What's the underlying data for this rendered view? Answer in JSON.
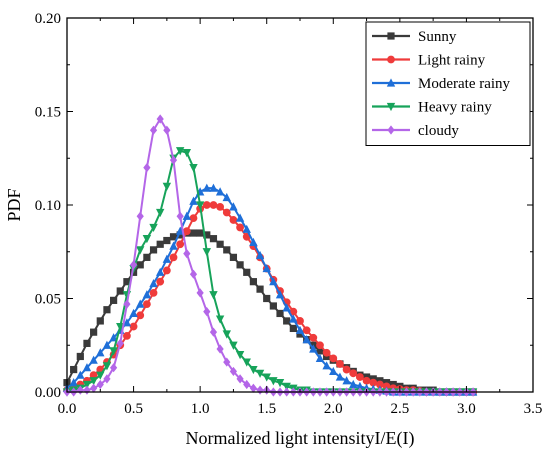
{
  "chart_data": {
    "type": "line",
    "xlabel": "Normalized light intensityI/E(I)",
    "ylabel": "PDF",
    "xlim": [
      0,
      3.5
    ],
    "ylim": [
      0,
      0.2
    ],
    "xticks": [
      "0.0",
      "0.5",
      "1.0",
      "1.5",
      "2.0",
      "2.5",
      "3.0",
      "3.5"
    ],
    "yticks": [
      "0.00",
      "0.05",
      "0.10",
      "0.15",
      "0.20"
    ],
    "grid": false,
    "legend_position": "top-right",
    "series": [
      {
        "name": "Sunny",
        "color": "#3a3a3a",
        "marker": "square",
        "x": [
          0.0,
          0.05,
          0.1,
          0.15,
          0.2,
          0.25,
          0.3,
          0.35,
          0.4,
          0.45,
          0.5,
          0.55,
          0.6,
          0.65,
          0.7,
          0.75,
          0.8,
          0.85,
          0.9,
          0.95,
          1.0,
          1.05,
          1.1,
          1.15,
          1.2,
          1.25,
          1.3,
          1.35,
          1.4,
          1.45,
          1.5,
          1.55,
          1.6,
          1.65,
          1.7,
          1.75,
          1.8,
          1.85,
          1.9,
          1.95,
          2.0,
          2.05,
          2.1,
          2.15,
          2.2,
          2.25,
          2.3,
          2.35,
          2.4,
          2.45,
          2.5,
          2.55,
          2.6,
          2.65,
          2.7,
          2.75,
          2.8,
          2.85,
          2.9,
          2.95,
          3.0,
          3.05
        ],
        "y": [
          0.005,
          0.012,
          0.019,
          0.026,
          0.032,
          0.038,
          0.044,
          0.049,
          0.054,
          0.059,
          0.064,
          0.068,
          0.072,
          0.076,
          0.079,
          0.081,
          0.083,
          0.084,
          0.085,
          0.085,
          0.085,
          0.084,
          0.082,
          0.079,
          0.076,
          0.072,
          0.068,
          0.064,
          0.059,
          0.055,
          0.05,
          0.046,
          0.042,
          0.038,
          0.034,
          0.031,
          0.028,
          0.025,
          0.022,
          0.019,
          0.017,
          0.015,
          0.013,
          0.011,
          0.009,
          0.008,
          0.007,
          0.006,
          0.005,
          0.004,
          0.003,
          0.002,
          0.002,
          0.001,
          0.001,
          0.001,
          0.0,
          0.0,
          0.0,
          0.0,
          0.0,
          0.0
        ]
      },
      {
        "name": "Light rainy",
        "color": "#ef3b3b",
        "marker": "circle",
        "x": [
          0.0,
          0.05,
          0.1,
          0.15,
          0.2,
          0.25,
          0.3,
          0.35,
          0.4,
          0.45,
          0.5,
          0.55,
          0.6,
          0.65,
          0.7,
          0.75,
          0.8,
          0.85,
          0.9,
          0.95,
          1.0,
          1.05,
          1.1,
          1.15,
          1.2,
          1.25,
          1.3,
          1.35,
          1.4,
          1.45,
          1.5,
          1.55,
          1.6,
          1.65,
          1.7,
          1.75,
          1.8,
          1.85,
          1.9,
          1.95,
          2.0,
          2.05,
          2.1,
          2.15,
          2.2,
          2.25,
          2.3,
          2.35,
          2.4,
          2.45,
          2.5,
          2.55,
          2.6,
          2.65,
          2.7,
          2.75,
          2.8,
          2.85,
          2.9,
          2.95,
          3.0,
          3.05
        ],
        "y": [
          0.001,
          0.002,
          0.004,
          0.006,
          0.009,
          0.012,
          0.016,
          0.02,
          0.025,
          0.03,
          0.035,
          0.041,
          0.047,
          0.053,
          0.059,
          0.065,
          0.072,
          0.079,
          0.086,
          0.093,
          0.098,
          0.1,
          0.1,
          0.099,
          0.096,
          0.092,
          0.088,
          0.083,
          0.078,
          0.072,
          0.066,
          0.06,
          0.054,
          0.048,
          0.043,
          0.038,
          0.033,
          0.029,
          0.025,
          0.021,
          0.018,
          0.015,
          0.012,
          0.01,
          0.008,
          0.006,
          0.005,
          0.004,
          0.003,
          0.002,
          0.0015,
          0.001,
          0.001,
          0.0005,
          0.0,
          0.0,
          0.0,
          0.0,
          0.0,
          0.0,
          0.0,
          0.0
        ]
      },
      {
        "name": "Moderate rainy",
        "color": "#1f6fd8",
        "marker": "triangle-up",
        "x": [
          0.0,
          0.05,
          0.1,
          0.15,
          0.2,
          0.25,
          0.3,
          0.35,
          0.4,
          0.45,
          0.5,
          0.55,
          0.6,
          0.65,
          0.7,
          0.75,
          0.8,
          0.85,
          0.9,
          0.95,
          1.0,
          1.05,
          1.1,
          1.15,
          1.2,
          1.25,
          1.3,
          1.35,
          1.4,
          1.45,
          1.5,
          1.55,
          1.6,
          1.65,
          1.7,
          1.75,
          1.8,
          1.85,
          1.9,
          1.95,
          2.0,
          2.05,
          2.1,
          2.15,
          2.2,
          2.25,
          2.3,
          2.35,
          2.4,
          2.45,
          2.5,
          2.55,
          2.6,
          2.65,
          2.7,
          2.75,
          2.8,
          2.85,
          2.9,
          2.95,
          3.0,
          3.05
        ],
        "y": [
          0.002,
          0.005,
          0.009,
          0.013,
          0.017,
          0.021,
          0.025,
          0.029,
          0.033,
          0.037,
          0.042,
          0.047,
          0.052,
          0.058,
          0.064,
          0.071,
          0.078,
          0.086,
          0.094,
          0.102,
          0.107,
          0.109,
          0.109,
          0.107,
          0.104,
          0.099,
          0.093,
          0.087,
          0.08,
          0.073,
          0.066,
          0.059,
          0.052,
          0.045,
          0.039,
          0.033,
          0.028,
          0.023,
          0.018,
          0.014,
          0.011,
          0.008,
          0.006,
          0.004,
          0.003,
          0.002,
          0.0015,
          0.001,
          0.0005,
          0.0,
          0.0,
          0.0,
          0.0,
          0.0,
          0.0,
          0.0,
          0.0,
          0.0,
          0.0,
          0.0,
          0.0,
          0.0
        ]
      },
      {
        "name": "Heavy rainy",
        "color": "#17a35a",
        "marker": "triangle-down",
        "x": [
          0.0,
          0.05,
          0.1,
          0.15,
          0.2,
          0.25,
          0.3,
          0.35,
          0.4,
          0.45,
          0.5,
          0.55,
          0.6,
          0.65,
          0.7,
          0.75,
          0.8,
          0.85,
          0.9,
          0.95,
          1.0,
          1.05,
          1.1,
          1.15,
          1.2,
          1.25,
          1.3,
          1.35,
          1.4,
          1.45,
          1.5,
          1.55,
          1.6,
          1.65,
          1.7,
          1.75,
          1.8,
          1.85,
          1.9,
          1.95,
          2.0,
          2.05,
          2.1,
          2.15,
          2.2,
          2.25,
          2.3,
          2.35,
          2.4,
          2.45,
          2.5,
          2.55,
          2.6,
          2.65,
          2.7,
          2.75,
          2.8,
          2.85,
          2.9,
          2.95,
          3.0,
          3.05
        ],
        "y": [
          0.0,
          0.001,
          0.002,
          0.004,
          0.006,
          0.009,
          0.014,
          0.022,
          0.035,
          0.052,
          0.066,
          0.076,
          0.082,
          0.088,
          0.096,
          0.11,
          0.125,
          0.129,
          0.128,
          0.12,
          0.1,
          0.075,
          0.052,
          0.039,
          0.031,
          0.025,
          0.02,
          0.016,
          0.012,
          0.01,
          0.008,
          0.006,
          0.005,
          0.003,
          0.002,
          0.001,
          0.001,
          0.0,
          0.0,
          0.0,
          0.0,
          0.0,
          0.0,
          0.0,
          0.0,
          0.0,
          0.0,
          0.0,
          0.0,
          0.0,
          0.0,
          0.0,
          0.0,
          0.0,
          0.0,
          0.0,
          0.0,
          0.0,
          0.0,
          0.0,
          0.0,
          0.0
        ]
      },
      {
        "name": "cloudy",
        "color": "#b466e8",
        "marker": "diamond",
        "x": [
          0.0,
          0.05,
          0.1,
          0.15,
          0.2,
          0.25,
          0.3,
          0.35,
          0.4,
          0.45,
          0.5,
          0.55,
          0.6,
          0.65,
          0.7,
          0.75,
          0.8,
          0.85,
          0.9,
          0.95,
          1.0,
          1.05,
          1.1,
          1.15,
          1.2,
          1.25,
          1.3,
          1.35,
          1.4,
          1.45,
          1.5,
          1.55,
          1.6,
          1.65,
          1.7,
          1.75,
          1.8,
          1.85,
          1.9,
          1.95,
          2.0,
          2.05,
          2.1,
          2.15,
          2.2,
          2.25,
          2.3,
          2.35,
          2.4,
          2.45,
          2.5,
          2.55,
          2.6,
          2.65,
          2.7,
          2.75,
          2.8,
          2.85,
          2.9,
          2.95,
          3.0,
          3.05
        ],
        "y": [
          0.0,
          0.0,
          0.001,
          0.001,
          0.002,
          0.004,
          0.007,
          0.013,
          0.026,
          0.047,
          0.068,
          0.094,
          0.12,
          0.14,
          0.146,
          0.14,
          0.124,
          0.094,
          0.074,
          0.063,
          0.053,
          0.043,
          0.032,
          0.023,
          0.016,
          0.011,
          0.007,
          0.004,
          0.002,
          0.001,
          0.001,
          0.0,
          0.0,
          0.0,
          0.0,
          0.0,
          0.0,
          0.0,
          0.0,
          0.0,
          0.0,
          0.0,
          0.0,
          0.0,
          0.0,
          0.0,
          0.0,
          0.0,
          0.0,
          0.0,
          0.0,
          0.0,
          0.0,
          0.0,
          0.0,
          0.0,
          0.0,
          0.0,
          0.0,
          0.0,
          0.0,
          0.0
        ]
      }
    ]
  }
}
